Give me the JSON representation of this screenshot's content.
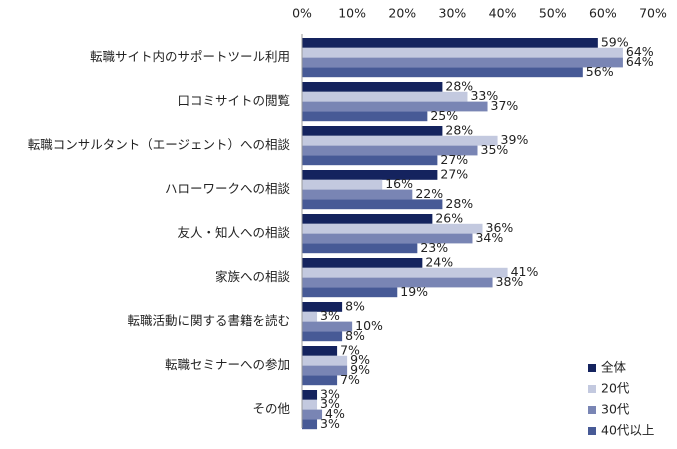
{
  "chart_data": {
    "type": "bar",
    "orientation": "horizontal",
    "categories": [
      "転職サイト内のサポートツール利用",
      "口コミサイトの閲覧",
      "転職コンサルタント（エージェント）への相談",
      "ハローワークへの相談",
      "友人・知人への相談",
      "家族への相談",
      "転職活動に関する書籍を読む",
      "転職セミナーへの参加",
      "その他"
    ],
    "series": [
      {
        "name": "全体",
        "color": "#14235e",
        "values": [
          59,
          28,
          28,
          27,
          26,
          24,
          8,
          7,
          3
        ],
        "value_labels": [
          "59%",
          "28%",
          "28%",
          "27%",
          "26%",
          "24%",
          "8%",
          "7%",
          "3%"
        ]
      },
      {
        "name": "20代",
        "color": "#c3c9df",
        "values": [
          64,
          33,
          39,
          16,
          36,
          41,
          3,
          9,
          3
        ],
        "value_labels": [
          "64%",
          "33%",
          "39%",
          "16%",
          "36%",
          "41%",
          "3%",
          "9%",
          "3%"
        ]
      },
      {
        "name": "30代",
        "color": "#7985b4",
        "values": [
          64,
          37,
          35,
          22,
          34,
          38,
          10,
          9,
          4
        ],
        "value_labels": [
          "64%",
          "37%",
          "35%",
          "22%",
          "34%",
          "38%",
          "10%",
          "9%",
          "4%"
        ]
      },
      {
        "name": "40代以上",
        "color": "#475a96",
        "values": [
          56,
          25,
          27,
          28,
          23,
          19,
          8,
          7,
          3
        ],
        "value_labels": [
          "56%",
          "25%",
          "27%",
          "28%",
          "23%",
          "19%",
          "8%",
          "7%",
          "3%"
        ]
      }
    ],
    "xlim": [
      0,
      70
    ],
    "xticks": [
      {
        "value": 0,
        "label": "0%"
      },
      {
        "value": 10,
        "label": "10%"
      },
      {
        "value": 20,
        "label": "20%"
      },
      {
        "value": 30,
        "label": "30%"
      },
      {
        "value": 40,
        "label": "40%"
      },
      {
        "value": 50,
        "label": "50%"
      },
      {
        "value": 60,
        "label": "60%"
      },
      {
        "value": 70,
        "label": "70%"
      }
    ],
    "legend": "bottom-right"
  }
}
